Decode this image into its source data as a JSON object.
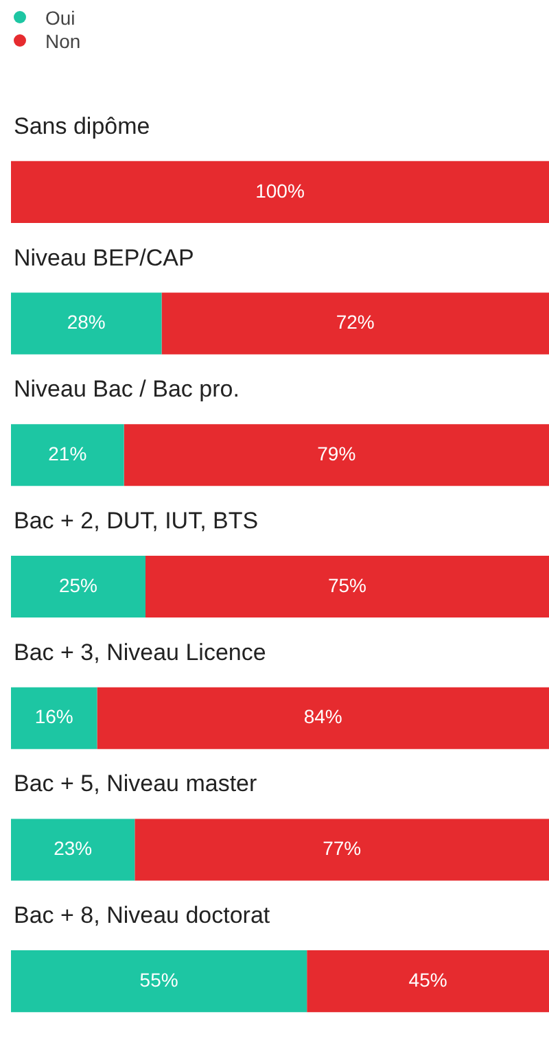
{
  "chart_data": {
    "type": "bar",
    "orientation": "horizontal",
    "stacked": true,
    "categories": [
      "Sans dipôme",
      "Niveau BEP/CAP",
      "Niveau Bac / Bac pro.",
      "Bac + 2, DUT, IUT, BTS",
      "Bac + 3, Niveau Licence",
      "Bac + 5, Niveau master",
      "Bac + 8, Niveau doctorat"
    ],
    "series": [
      {
        "name": "Oui",
        "color": "#1dc6a3",
        "values": [
          0,
          28,
          21,
          25,
          16,
          23,
          55
        ],
        "value_labels": [
          null,
          "28%",
          "21%",
          "25%",
          "16%",
          "23%",
          "55%"
        ]
      },
      {
        "name": "Non",
        "color": "#e62b2f",
        "values": [
          100,
          72,
          79,
          75,
          84,
          77,
          45
        ],
        "value_labels": [
          "100%",
          "72%",
          "79%",
          "75%",
          "84%",
          "77%",
          "45%"
        ]
      }
    ],
    "xlim": [
      0,
      100
    ],
    "tick_labels": false,
    "legend": "top left"
  }
}
